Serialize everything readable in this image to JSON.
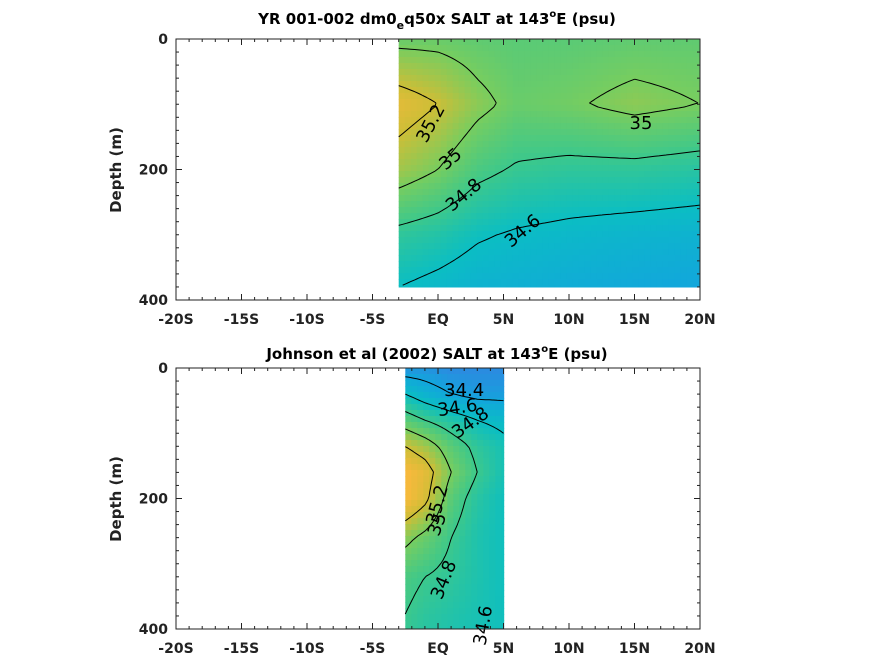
{
  "chart_data": [
    {
      "type": "heatmap",
      "title_main": "YR 001-002 dm0",
      "title_sub": "e",
      "title_rest": "q50x SALT at 143",
      "title_sup": "o",
      "title_end": "E (psu)",
      "xlabel": "",
      "ylabel": "Depth (m)",
      "xlim": [
        -20,
        20
      ],
      "ylim": [
        400,
        0
      ],
      "x_ticks": [
        -20,
        -15,
        -10,
        -5,
        0,
        5,
        10,
        15,
        20
      ],
      "x_tick_labels": [
        "-20S",
        "-15S",
        "-10S",
        "-5S",
        "EQ",
        "5N",
        "10N",
        "15N",
        "20N"
      ],
      "y_ticks": [
        0,
        200,
        400
      ],
      "y_tick_labels": [
        "0",
        "200",
        "400"
      ],
      "data_extent": {
        "lat": [
          -3,
          20
        ],
        "depth": [
          0,
          380
        ]
      },
      "field": {
        "lat": [
          -3,
          0,
          3,
          6,
          10,
          15,
          20
        ],
        "depth": [
          0,
          100,
          200,
          300,
          380
        ],
        "salt": [
          [
            34.95,
            34.95,
            34.92,
            34.9,
            34.9,
            34.92,
            34.92
          ],
          [
            35.3,
            35.2,
            35.05,
            34.95,
            34.98,
            35.05,
            35.0
          ],
          [
            35.1,
            35.0,
            34.85,
            34.78,
            34.75,
            34.75,
            34.72
          ],
          [
            34.75,
            34.7,
            34.62,
            34.58,
            34.55,
            34.52,
            34.5
          ],
          [
            34.6,
            34.55,
            34.5,
            34.48,
            34.45,
            34.42,
            34.4
          ]
        ]
      },
      "contour_labels": [
        {
          "text": "35.2",
          "lat": -0.5,
          "depth": 130,
          "rot": -62
        },
        {
          "text": "35",
          "lat": 1,
          "depth": 185,
          "rot": -40
        },
        {
          "text": "34.8",
          "lat": 2,
          "depth": 240,
          "rot": -40
        },
        {
          "text": "34.6",
          "lat": 6.5,
          "depth": 295,
          "rot": -40
        },
        {
          "text": "35",
          "lat": 15.5,
          "depth": 130,
          "rot": 0
        }
      ]
    },
    {
      "type": "heatmap",
      "title_main": "Johnson et al (2002) SALT at 143",
      "title_sup": "o",
      "title_end": "E (psu)",
      "xlabel": "",
      "ylabel": "Depth (m)",
      "xlim": [
        -20,
        20
      ],
      "ylim": [
        400,
        0
      ],
      "x_ticks": [
        -20,
        -15,
        -10,
        -5,
        0,
        5,
        10,
        15,
        20
      ],
      "x_tick_labels": [
        "-20S",
        "-15S",
        "-10S",
        "-5S",
        "EQ",
        "5N",
        "10N",
        "15N",
        "20N"
      ],
      "y_ticks": [
        0,
        200,
        400
      ],
      "y_tick_labels": [
        "0",
        "200",
        "400"
      ],
      "data_extent": {
        "lat": [
          -2.5,
          5
        ],
        "depth": [
          0,
          400
        ]
      },
      "field": {
        "lat": [
          -2.5,
          -1,
          1,
          3,
          5
        ],
        "depth": [
          0,
          40,
          80,
          120,
          160,
          200,
          260,
          320,
          400
        ],
        "salt": [
          [
            34.3,
            34.3,
            34.25,
            34.25,
            34.25
          ],
          [
            34.6,
            34.5,
            34.4,
            34.35,
            34.35
          ],
          [
            34.9,
            34.8,
            34.7,
            34.6,
            34.55
          ],
          [
            35.2,
            35.1,
            34.9,
            34.75,
            34.65
          ],
          [
            35.4,
            35.3,
            35.0,
            34.8,
            34.65
          ],
          [
            35.4,
            35.25,
            34.9,
            34.72,
            34.62
          ],
          [
            35.05,
            34.95,
            34.8,
            34.68,
            34.62
          ],
          [
            34.85,
            34.8,
            34.75,
            34.68,
            34.62
          ],
          [
            34.78,
            34.72,
            34.68,
            34.65,
            34.62
          ]
        ]
      },
      "contour_labels": [
        {
          "text": "34.4",
          "lat": 2,
          "depth": 35,
          "rot": 0
        },
        {
          "text": "34.6",
          "lat": 1.5,
          "depth": 62,
          "rot": -8
        },
        {
          "text": "34.8",
          "lat": 2.5,
          "depth": 85,
          "rot": -35
        },
        {
          "text": "35.2",
          "lat": 0,
          "depth": 210,
          "rot": -75
        },
        {
          "text": "35",
          "lat": 0,
          "depth": 240,
          "rot": -70
        },
        {
          "text": "34.8",
          "lat": 0.5,
          "depth": 325,
          "rot": -68
        },
        {
          "text": "34.6",
          "lat": 3.5,
          "depth": 395,
          "rot": -80
        }
      ]
    }
  ]
}
